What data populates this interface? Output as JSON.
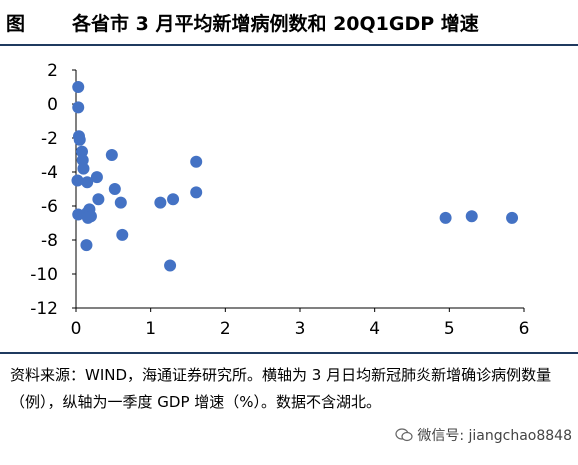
{
  "header": {
    "label": "图",
    "title": "各省市 3 月平均新增病例数和 20Q1GDP 增速"
  },
  "note": "资料来源：WIND，海通证券研究所。横轴为 3 月日均新冠肺炎新增确诊病例数量（例），纵轴为一季度 GDP 增速（%）。数据不含湖北。",
  "watermark": {
    "icon": "wechat-icon",
    "text": "微信号: jiangchao8848"
  },
  "colors": {
    "point": "#4472C4",
    "axis": "#000000"
  },
  "chart_data": {
    "type": "scatter",
    "title": "",
    "xlabel": "",
    "ylabel": "",
    "xlim": [
      0,
      6
    ],
    "ylim": [
      -12,
      2
    ],
    "xticks": [
      "0",
      "1",
      "2",
      "3",
      "4",
      "5",
      "6"
    ],
    "yticks": [
      "2",
      "0",
      "-2",
      "-4",
      "-6",
      "-8",
      "-10",
      "-12"
    ],
    "grid": false,
    "legend": "none",
    "points": [
      {
        "x": 0.03,
        "y": 1.0
      },
      {
        "x": 0.03,
        "y": -0.2
      },
      {
        "x": 0.04,
        "y": -1.9
      },
      {
        "x": 0.05,
        "y": -2.1
      },
      {
        "x": 0.08,
        "y": -2.8
      },
      {
        "x": 0.09,
        "y": -3.3
      },
      {
        "x": 0.1,
        "y": -3.8
      },
      {
        "x": 0.02,
        "y": -4.5
      },
      {
        "x": 0.15,
        "y": -4.6
      },
      {
        "x": 0.03,
        "y": -6.5
      },
      {
        "x": 0.15,
        "y": -6.4
      },
      {
        "x": 0.18,
        "y": -6.2
      },
      {
        "x": 0.2,
        "y": -6.6
      },
      {
        "x": 0.16,
        "y": -6.7
      },
      {
        "x": 0.14,
        "y": -8.3
      },
      {
        "x": 0.28,
        "y": -4.3
      },
      {
        "x": 0.3,
        "y": -5.6
      },
      {
        "x": 0.48,
        "y": -3.0
      },
      {
        "x": 0.52,
        "y": -5.0
      },
      {
        "x": 0.6,
        "y": -5.8
      },
      {
        "x": 0.62,
        "y": -7.7
      },
      {
        "x": 1.13,
        "y": -5.8
      },
      {
        "x": 1.3,
        "y": -5.6
      },
      {
        "x": 1.26,
        "y": -9.5
      },
      {
        "x": 1.61,
        "y": -3.4
      },
      {
        "x": 1.61,
        "y": -5.2
      },
      {
        "x": 4.95,
        "y": -6.7
      },
      {
        "x": 5.3,
        "y": -6.6
      },
      {
        "x": 5.84,
        "y": -6.7
      }
    ]
  }
}
